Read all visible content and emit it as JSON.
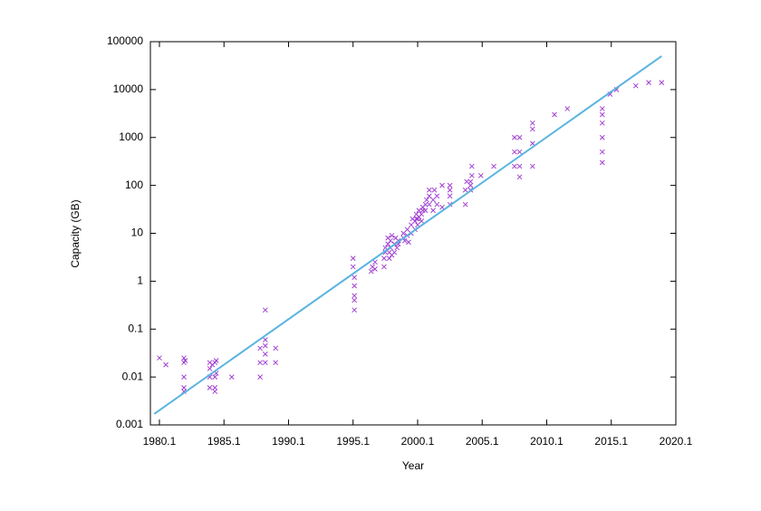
{
  "chart_data": {
    "type": "scatter",
    "x_label": "Year",
    "y_label": "Capacity (GB)",
    "xlim": [
      1979.4,
      2020.1
    ],
    "xticks": [
      1980.1,
      1985.1,
      1990.1,
      1995.1,
      2000.1,
      2005.1,
      2010.1,
      2015.1,
      2020.1
    ],
    "ylim": [
      0.001,
      100000
    ],
    "yticks": [
      0.001,
      0.01,
      0.1,
      1,
      10,
      100,
      1000,
      10000,
      100000
    ],
    "log_y": true,
    "series": [
      {
        "type": "scatter",
        "color": "#a040d0",
        "x": [
          1980.1,
          1980.6,
          1982,
          1982,
          1982,
          1982,
          1982,
          1982.1,
          1984,
          1984,
          1984,
          1984,
          1984.2,
          1984.4,
          1984.4,
          1984.4,
          1984.4,
          1984.5,
          1984.5,
          1985.7,
          1987.9,
          1987.9,
          1987.9,
          1988.3,
          1988.3,
          1988.3,
          1988.3,
          1988.3,
          1989.1,
          1989.1,
          1995.1,
          1995.1,
          1995.2,
          1995.2,
          1995.2,
          1995.2,
          1995.2,
          1996.5,
          1996.6,
          1996.8,
          1996.8,
          1997.5,
          1997.5,
          1997.6,
          1997.6,
          1997.8,
          1997.8,
          1997.9,
          1997.9,
          1998,
          1998,
          1998.1,
          1998.1,
          1998.3,
          1998.3,
          1998.4,
          1998.5,
          1998.6,
          1998.6,
          1999,
          1999,
          1999.1,
          1999.3,
          1999.3,
          1999.4,
          1999.6,
          1999.6,
          1999.7,
          1999.9,
          1999.9,
          2000,
          2000,
          2000.1,
          2000.1,
          2000.2,
          2000.2,
          2000.4,
          2000.4,
          2000.5,
          2000.5,
          2000.7,
          2000.7,
          2000.8,
          2001,
          2001,
          2001,
          2001.3,
          2001.3,
          2001.4,
          2001.6,
          2001.6,
          2002,
          2002,
          2002.6,
          2002.6,
          2002.6,
          2002.6,
          2003.8,
          2003.8,
          2003.9,
          2004.2,
          2004.2,
          2004.2,
          2004.3,
          2004.3,
          2005,
          2006,
          2007.6,
          2007.6,
          2007.6,
          2008,
          2008,
          2008,
          2008,
          2009,
          2009,
          2009,
          2009,
          2010.7,
          2011.7,
          2014.4,
          2014.4,
          2014.4,
          2014.4,
          2014.4,
          2014.4,
          2015,
          2015.5,
          2017,
          2018,
          2019
        ],
        "values": [
          0.025,
          0.018,
          0.025,
          0.02,
          0.01,
          0.006,
          0.005,
          0.022,
          0.02,
          0.015,
          0.01,
          0.006,
          0.018,
          0.02,
          0.01,
          0.005,
          0.006,
          0.022,
          0.012,
          0.01,
          0.04,
          0.02,
          0.01,
          0.25,
          0.06,
          0.045,
          0.03,
          0.02,
          0.04,
          0.02,
          3,
          2,
          1.2,
          0.8,
          0.5,
          0.4,
          0.25,
          1.6,
          2,
          2.5,
          1.8,
          2,
          3,
          4,
          5,
          6,
          8,
          4,
          3,
          5,
          7,
          9,
          3.5,
          4,
          6,
          8,
          5,
          7,
          6,
          8,
          10,
          7,
          9,
          12,
          6.5,
          10,
          15,
          20,
          12,
          18,
          20,
          25,
          15,
          20,
          22,
          30,
          18,
          25,
          30,
          35,
          30,
          40,
          50,
          40,
          60,
          80,
          30,
          50,
          80,
          40,
          60,
          35,
          100,
          40,
          60,
          80,
          100,
          40,
          80,
          120,
          80,
          100,
          120,
          160,
          250,
          160,
          250,
          250,
          500,
          1000,
          150,
          250,
          500,
          1000,
          250,
          750,
          1500,
          2000,
          3000,
          4000,
          4000,
          3000,
          2000,
          1000,
          500,
          300,
          8000,
          10000,
          12000,
          14000,
          14000
        ]
      },
      {
        "type": "line",
        "color": "#5ab4e0",
        "x": [
          1979.7,
          2019
        ],
        "values": [
          0.0017,
          50000
        ]
      }
    ]
  }
}
